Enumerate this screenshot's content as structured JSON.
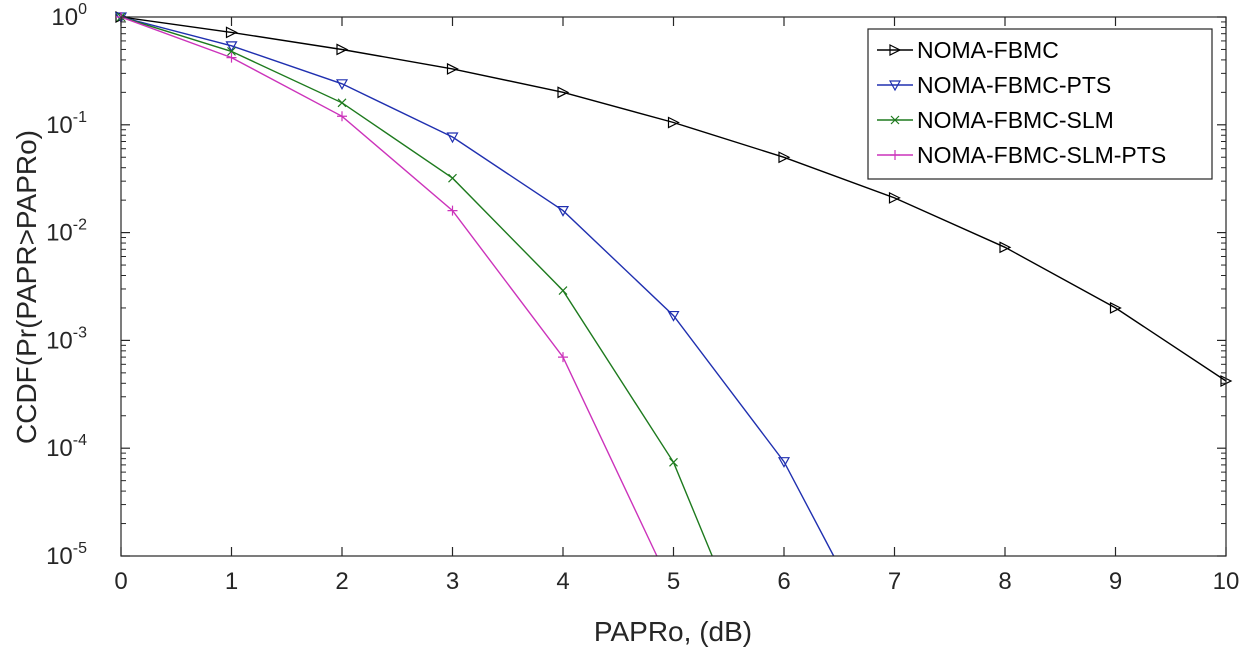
{
  "chart_data": {
    "type": "line",
    "yscale": "log",
    "xlabel": "PAPRo, (dB)",
    "ylabel": "CCDF(Pr(PAPR>PAPRo)",
    "xlim": [
      0,
      10
    ],
    "ylim": [
      1e-05,
      1
    ],
    "xticks": [
      "0",
      "1",
      "2",
      "3",
      "4",
      "5",
      "6",
      "7",
      "8",
      "9",
      "10"
    ],
    "yticks": [
      {
        "base": "10",
        "exp": "0"
      },
      {
        "base": "10",
        "exp": "-1"
      },
      {
        "base": "10",
        "exp": "-2"
      },
      {
        "base": "10",
        "exp": "-3"
      },
      {
        "base": "10",
        "exp": "-4"
      },
      {
        "base": "10",
        "exp": "-5"
      }
    ],
    "grid": false,
    "legend_position": "top-right",
    "series": [
      {
        "name": "NOMA-FBMC",
        "color": "#000000",
        "marker": "triangle-right",
        "x": [
          0,
          1,
          2,
          3,
          4,
          5,
          6,
          7,
          8,
          9,
          10
        ],
        "y": [
          1,
          0.72,
          0.5,
          0.33,
          0.2,
          0.105,
          0.05,
          0.021,
          0.0073,
          0.002,
          0.00042
        ]
      },
      {
        "name": "NOMA-FBMC-PTS",
        "color": "#2030b0",
        "marker": "triangle-down",
        "x": [
          0,
          1,
          2,
          3,
          4,
          5,
          6,
          6.45
        ],
        "y": [
          1,
          0.54,
          0.24,
          0.077,
          0.016,
          0.0017,
          7.5e-05,
          1e-05
        ],
        "marker_count": 7
      },
      {
        "name": "NOMA-FBMC-SLM",
        "color": "#1e7a1e",
        "marker": "x",
        "x": [
          0,
          1,
          2,
          3,
          4,
          5,
          5.35
        ],
        "y": [
          1,
          0.48,
          0.16,
          0.032,
          0.0029,
          7.4e-05,
          1e-05
        ],
        "marker_count": 6
      },
      {
        "name": "NOMA-FBMC-SLM-PTS",
        "color": "#cc33bb",
        "marker": "plus",
        "x": [
          0,
          1,
          2,
          3,
          4,
          4.85
        ],
        "y": [
          1,
          0.42,
          0.12,
          0.016,
          0.0007,
          1e-05
        ],
        "marker_count": 5
      }
    ]
  }
}
